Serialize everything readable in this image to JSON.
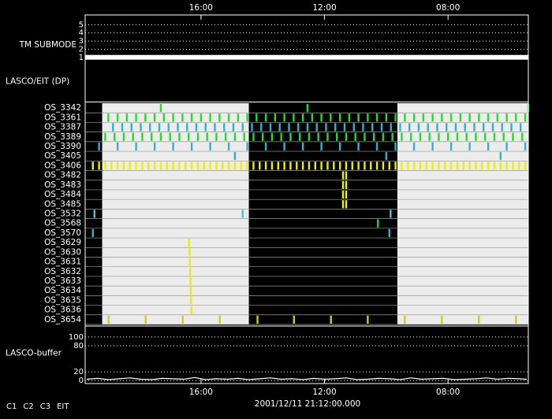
{
  "chart_data": [
    {
      "type": "line",
      "ylabel": "TM SUBMODE",
      "ylim": [
        0.6,
        5.9
      ],
      "yticks": [
        1,
        2,
        3,
        4,
        5
      ],
      "x": [
        19.75,
        5.4
      ],
      "values": [
        1,
        1
      ],
      "color": "#ffffff"
    },
    {
      "type": "blank",
      "ylabel": "LASCO/EIT (DP)"
    },
    {
      "type": "timeline",
      "xlim": [
        19.75,
        5.4
      ],
      "xticks": [
        {
          "value": 16,
          "label": "16:00"
        },
        {
          "value": 12,
          "label": "12:00"
        },
        {
          "value": 8,
          "label": "08:00"
        }
      ],
      "shaded": [
        [
          19.2,
          14.45
        ],
        [
          9.64,
          5.4
        ]
      ],
      "shade_color": "#ececec",
      "rows": [
        {
          "name": "OS_3342",
          "color": "#22dd22",
          "x": [
            17.3,
            12.55,
            5.4
          ]
        },
        {
          "name": "OS_3361",
          "color": "#22dd22",
          "x": [
            19.0,
            18.7,
            18.4,
            18.1,
            17.8,
            17.5,
            17.2,
            16.9,
            16.6,
            16.3,
            16.0,
            15.7,
            15.4,
            15.1,
            14.8,
            14.5,
            14.2,
            13.9,
            13.6,
            13.3,
            13.0,
            12.7,
            12.4,
            12.1,
            11.8,
            11.5,
            11.2,
            10.9,
            10.6,
            10.3,
            10.0,
            9.7,
            9.4,
            9.1,
            8.8,
            8.5,
            8.2,
            7.9,
            7.6,
            7.3,
            7.0,
            6.7,
            6.4,
            6.1,
            5.8,
            5.5
          ]
        },
        {
          "name": "OS_3387",
          "color": "#33b0d0",
          "x": [
            18.85,
            18.55,
            18.25,
            17.95,
            17.65,
            17.35,
            17.05,
            16.75,
            16.45,
            16.15,
            15.85,
            15.55,
            15.25,
            14.95,
            14.65,
            14.35,
            14.05,
            13.75,
            13.45,
            13.15,
            12.85,
            12.55,
            12.25,
            11.95,
            11.65,
            11.35,
            11.05,
            10.75,
            10.45,
            10.15,
            9.85,
            9.55,
            9.25,
            8.95,
            8.65,
            8.35,
            8.05,
            7.75,
            7.45,
            7.15,
            6.85,
            6.55,
            6.25,
            5.95,
            5.65
          ]
        },
        {
          "name": "OS_3389",
          "color": "#22dd22",
          "x": [
            19.1,
            18.8,
            18.5,
            18.2,
            17.9,
            17.6,
            17.3,
            17.0,
            16.7,
            16.4,
            16.1,
            15.8,
            15.5,
            15.2,
            14.9,
            14.6,
            14.3,
            14.0,
            13.7,
            13.4,
            13.1,
            12.8,
            12.5,
            12.2,
            11.9,
            11.6,
            11.3,
            11.0,
            10.7,
            10.4,
            10.1,
            9.8,
            9.5,
            9.2,
            8.9,
            8.6,
            8.3,
            8.0,
            7.7,
            7.4,
            7.1,
            6.8,
            6.5,
            6.2,
            5.9,
            5.6
          ]
        },
        {
          "name": "OS_3390",
          "color": "#33b0d0",
          "x": [
            19.3,
            18.7,
            18.1,
            17.5,
            16.9,
            16.3,
            15.7,
            15.1,
            14.5,
            13.9,
            13.3,
            12.7,
            12.1,
            11.5,
            10.9,
            10.3,
            9.7,
            9.1,
            8.5,
            7.9,
            7.3,
            6.7,
            6.1,
            5.5
          ]
        },
        {
          "name": "OS_3405",
          "color": "#33b0d0",
          "x": [
            14.9,
            10.0,
            6.3
          ]
        },
        {
          "name": "OS_3406",
          "color": "#eeee00",
          "x": [
            19.5,
            19.3,
            19.1,
            18.9,
            18.7,
            18.5,
            18.3,
            18.1,
            17.9,
            17.7,
            17.5,
            17.3,
            17.1,
            16.9,
            16.7,
            16.5,
            16.3,
            16.1,
            15.9,
            15.7,
            15.5,
            15.3,
            15.1,
            14.9,
            14.7,
            14.5,
            14.3,
            14.1,
            13.9,
            13.7,
            13.5,
            13.3,
            13.1,
            12.9,
            12.7,
            12.5,
            12.3,
            12.1,
            11.9,
            11.7,
            11.5,
            11.3,
            11.1,
            10.9,
            10.7,
            10.5,
            10.3,
            10.1,
            9.9,
            9.7,
            9.5,
            9.3,
            9.1,
            8.9,
            8.7,
            8.5,
            8.3,
            8.1,
            7.9,
            7.7,
            7.5,
            7.3,
            7.1,
            6.9,
            6.7,
            6.5,
            6.3,
            6.1,
            5.9,
            5.7,
            5.5
          ]
        },
        {
          "name": "OS_3482",
          "color": "#eeee00",
          "x": [
            11.4,
            11.3
          ]
        },
        {
          "name": "OS_3483",
          "color": "#eeee00",
          "x": [
            11.4,
            11.3
          ]
        },
        {
          "name": "OS_3484",
          "color": "#eeee00",
          "x": [
            11.4,
            11.3
          ]
        },
        {
          "name": "OS_3485",
          "color": "#eeee00",
          "x": [
            11.4,
            11.3
          ]
        },
        {
          "name": "OS_3532",
          "color": "#40c8e8",
          "x": [
            19.45,
            14.65,
            9.86
          ]
        },
        {
          "name": "OS_3568",
          "color": "#22dd22",
          "x": [
            10.27
          ]
        },
        {
          "name": "OS_3570",
          "color": "#33b0d0",
          "x": [
            19.5,
            9.9
          ]
        },
        {
          "name": "OS_3629",
          "color": "#eeee00",
          "x": [
            16.39
          ]
        },
        {
          "name": "OS_3630",
          "color": "#eeee00",
          "x": [
            16.37
          ]
        },
        {
          "name": "OS_3631",
          "color": "#eeee00",
          "x": [
            16.36
          ]
        },
        {
          "name": "OS_3632",
          "color": "#eeee00",
          "x": [
            16.35
          ]
        },
        {
          "name": "OS_3633",
          "color": "#eeee00",
          "x": [
            16.34
          ]
        },
        {
          "name": "OS_3634",
          "color": "#eeee00",
          "x": [
            16.33
          ]
        },
        {
          "name": "OS_3635",
          "color": "#eeee00",
          "x": [
            16.32
          ]
        },
        {
          "name": "OS_3636",
          "color": "#eeee00",
          "x": [
            16.31
          ]
        },
        {
          "name": "OS_3654",
          "color": "#cccc22",
          "x": [
            18.99,
            17.79,
            16.59,
            15.39,
            14.17,
            12.99,
            11.79,
            10.6,
            9.4,
            8.2,
            7.0,
            5.8
          ]
        }
      ]
    },
    {
      "type": "line",
      "ylabel": "LASCO-buffer",
      "ylim": [
        -7,
        118
      ],
      "yticks": [
        0,
        20,
        80,
        100
      ],
      "x": [
        19.7,
        19.35,
        19.0,
        18.65,
        18.3,
        17.95,
        17.6,
        17.25,
        16.9,
        16.55,
        16.2,
        15.85,
        15.5,
        15.15,
        14.8,
        14.45,
        14.1,
        13.75,
        13.4,
        13.05,
        12.7,
        12.35,
        12.0,
        11.65,
        11.3,
        10.95,
        10.6,
        10.25,
        9.9,
        9.55,
        9.2,
        8.85,
        8.5,
        8.15,
        7.8,
        7.45,
        7.1,
        6.75,
        6.4,
        6.05,
        5.7,
        5.45
      ],
      "values": [
        3,
        5,
        2,
        4,
        6,
        3,
        2,
        5,
        4,
        3,
        7,
        2,
        4,
        3,
        5,
        2,
        4,
        6,
        3,
        4,
        2,
        5,
        3,
        4,
        6,
        2,
        3,
        5,
        4,
        2,
        6,
        3,
        4,
        5,
        2,
        3,
        4,
        6,
        3,
        5,
        4,
        3
      ],
      "color": "#ffffff"
    }
  ],
  "timestamp": "2001/12/11 21:12:00.000",
  "legend": [
    {
      "name": "C1",
      "color": "#ff3030"
    },
    {
      "name": "C2",
      "color": "#30e030"
    },
    {
      "name": "C3",
      "color": "#40c8e8"
    },
    {
      "name": "EIT",
      "color": "#ffffff"
    }
  ]
}
